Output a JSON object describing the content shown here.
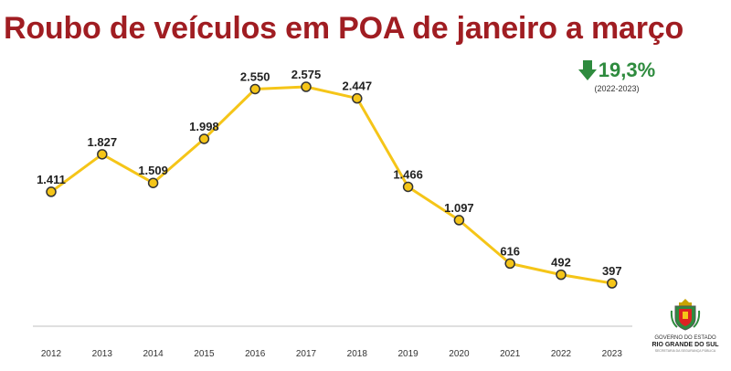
{
  "chart_data": {
    "type": "line",
    "title": "Roubo de veículos em POA de janeiro a março",
    "xlabel": "",
    "ylabel": "",
    "categories": [
      "2012",
      "2013",
      "2014",
      "2015",
      "2016",
      "2017",
      "2018",
      "2019",
      "2020",
      "2021",
      "2022",
      "2023"
    ],
    "series": [
      {
        "values": [
          1411,
          1827,
          1509,
          1998,
          2550,
          2575,
          2447,
          1466,
          1097,
          616,
          492,
          397
        ],
        "labels": [
          "1.411",
          "1.827",
          "1.509",
          "1.998",
          "2.550",
          "2.575",
          "2.447",
          "1.466",
          "1.097",
          "616",
          "492",
          "397"
        ]
      }
    ],
    "ylim": [
      0,
      2800
    ],
    "grid": false,
    "colors": {
      "line": "#f5c518",
      "marker_fill": "#f5c518",
      "marker_stroke": "#333333",
      "title": "#a01d22",
      "change": "#2e8b3e",
      "axis": "#bfbfbf"
    }
  },
  "change": {
    "icon": "arrow-down-icon",
    "value": "19,3%",
    "period": "(2022-2023)"
  },
  "logo": {
    "line1": "GOVERNO DO ESTADO",
    "line2": "RIO GRANDE DO SUL",
    "line3": "SECRETARIA DA SEGURANÇA PÚBLICA"
  }
}
